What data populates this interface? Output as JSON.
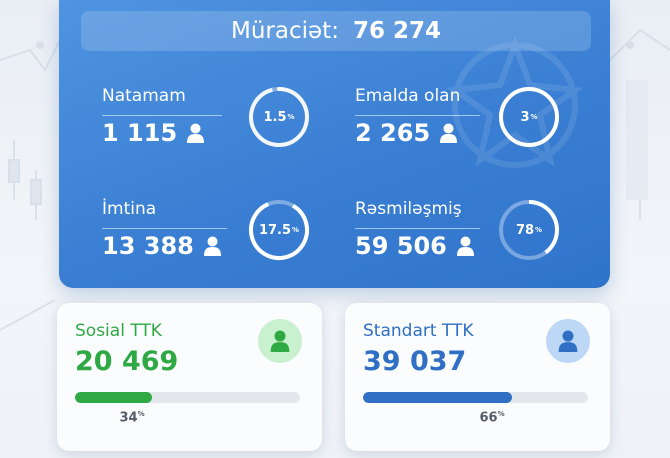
{
  "total": {
    "label": "Müraciət:",
    "value": "76 274"
  },
  "stats": [
    {
      "key": "natamam",
      "label": "Natamam",
      "value": "1 115",
      "percent": "1.5",
      "fraction": 0.015
    },
    {
      "key": "emalda",
      "label": "Emalda olan",
      "value": "2 265",
      "percent": "3",
      "fraction": 0.03
    },
    {
      "key": "imtina",
      "label": "İmtina",
      "value": "13 388",
      "percent": "17.5",
      "fraction": 0.175
    },
    {
      "key": "resmi",
      "label": "Rəsmiləşmiş",
      "value": "59 506",
      "percent": "78",
      "fraction": 0.78
    }
  ],
  "percent_sign": "%",
  "sosial": {
    "title": "Sosial TTK",
    "value": "20 469",
    "percent": "34",
    "fraction": 0.34,
    "color": "#2fa944",
    "avatar_bg": "#c9f0cf",
    "icon": "user-icon"
  },
  "standart": {
    "title": "Standart TTK",
    "value": "39 037",
    "percent": "66",
    "fraction": 0.66,
    "color": "#2f6fc4",
    "avatar_bg": "#bcd8f6",
    "icon": "user-icon"
  },
  "colors": {
    "card_blue": "#3a7fd3",
    "ring_track": "rgba(255,255,255,0.35)",
    "ring_fill": "#ffffff"
  }
}
